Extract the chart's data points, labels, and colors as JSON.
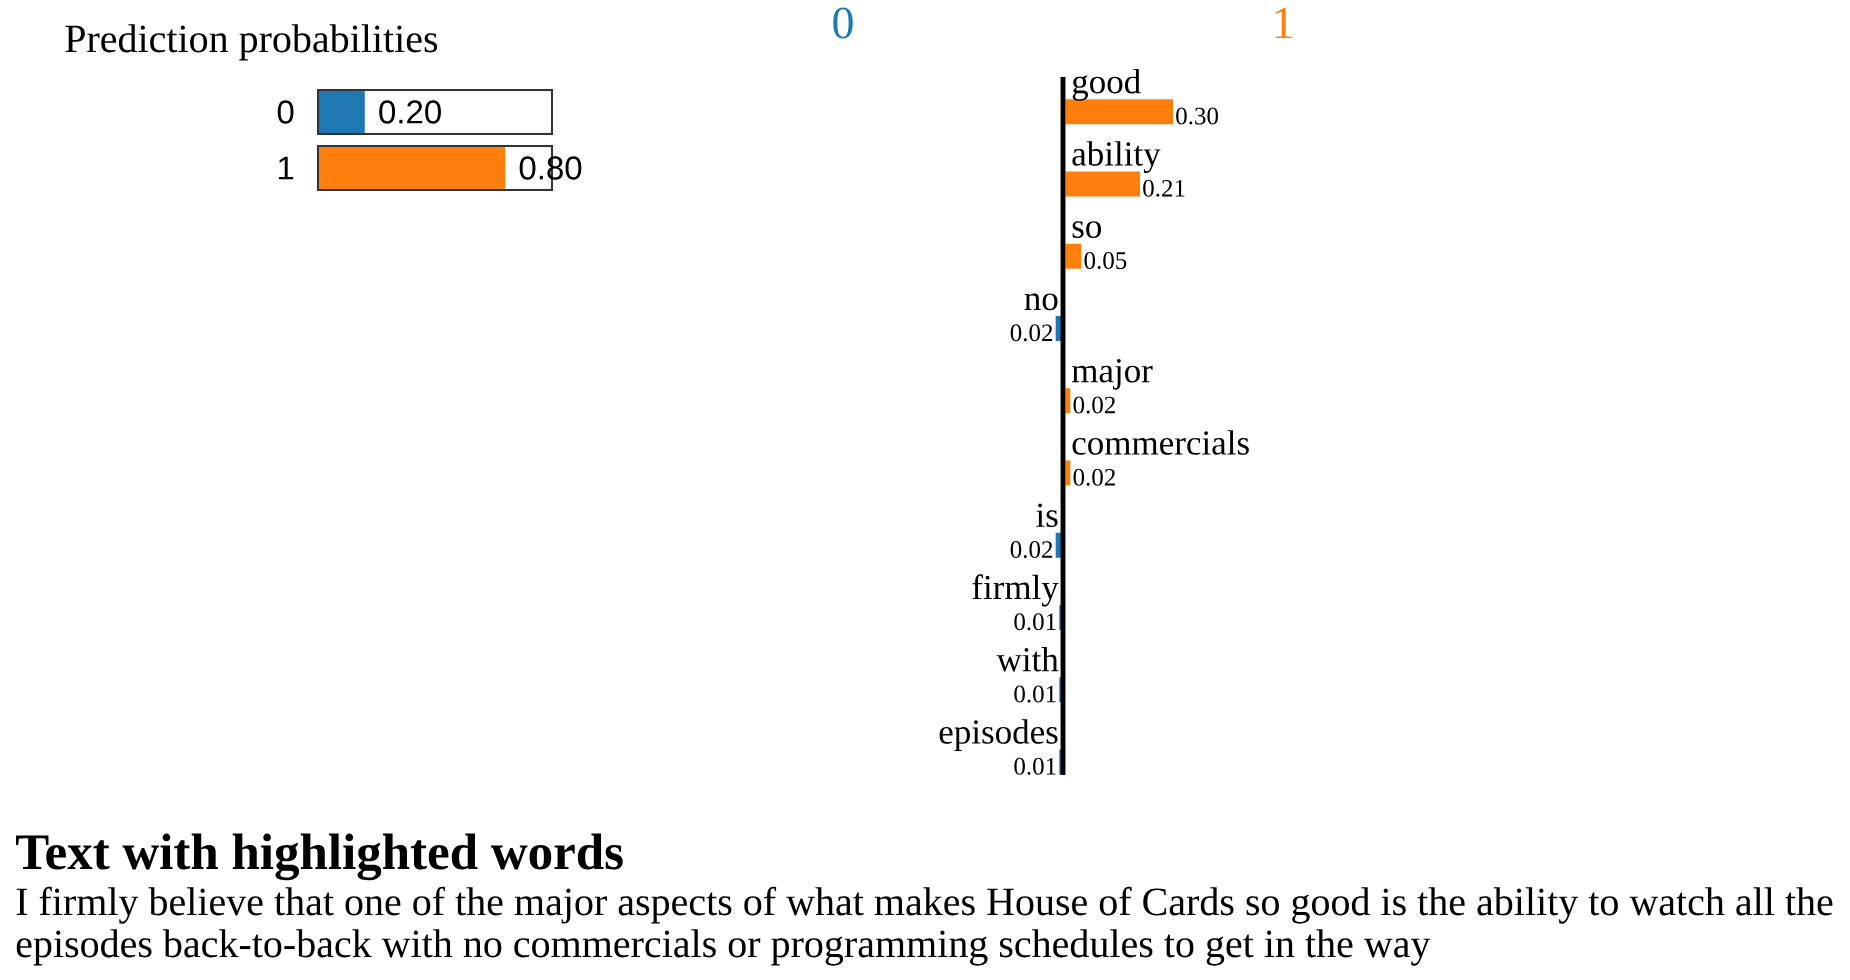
{
  "chart_data": [
    {
      "type": "bar",
      "orientation": "horizontal",
      "title": "Prediction probabilities",
      "categories": [
        "0",
        "1"
      ],
      "values": [
        0.2,
        0.8
      ],
      "colors": [
        "#1f77b4",
        "#ff7f0e"
      ],
      "value_labels": [
        "0.20",
        "0.80"
      ],
      "xlim": [
        0,
        1
      ],
      "tick_labels": "y"
    },
    {
      "type": "bar",
      "orientation": "horizontal",
      "categories": [
        null,
        null,
        null,
        "no",
        null,
        null,
        "is",
        "firmly",
        "with",
        "episodes"
      ],
      "series": [
        {
          "name": "0",
          "color": "#1f77b4",
          "values": [
            null,
            null,
            null,
            0.02,
            null,
            null,
            0.02,
            0.01,
            0.01,
            0.01
          ],
          "value_labels": [
            null,
            null,
            null,
            "0.02",
            null,
            null,
            "0.02",
            "0.01",
            "0.01",
            "0.01"
          ]
        }
      ],
      "tick_labels": "y"
    },
    {
      "type": "bar",
      "orientation": "horizontal",
      "categories": [
        "good",
        "ability",
        "so",
        null,
        "major",
        "commercials",
        null,
        null,
        null,
        null
      ],
      "series": [
        {
          "name": "1",
          "color": "#ff7f0e",
          "values": [
            0.3,
            0.21,
            0.05,
            null,
            0.02,
            0.02,
            null,
            null,
            null,
            null
          ],
          "value_labels": [
            "0.30",
            "0.21",
            "0.05",
            null,
            "0.02",
            "0.02",
            null,
            null,
            null,
            null
          ]
        }
      ],
      "tick_labels": "y"
    },
    {
      "type": "other",
      "title": "Text with highlighted words",
      "annotations": [
        "I firmly believe that one of the major aspects of what makes House of Cards so good is the ability to watch all the episodes back-to-back with no commercials or programming schedules to get in the way"
      ]
    }
  ]
}
